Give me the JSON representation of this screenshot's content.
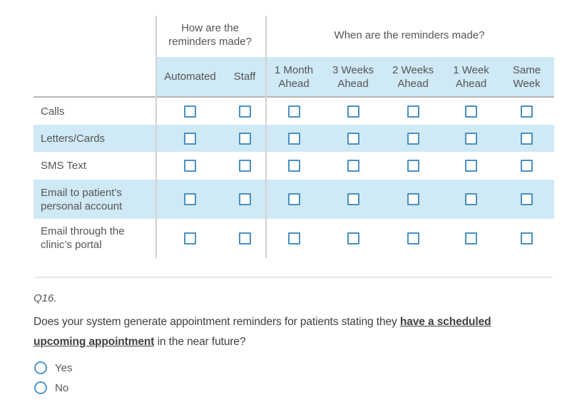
{
  "colors": {
    "row_highlight": "#cfe9f5",
    "checkbox_border": "#4a90c4",
    "radio_border": "#5095ce",
    "grid_line": "#d2d2d2",
    "header_rule": "#b7b7ba",
    "body_text": "#555555"
  },
  "matrix": {
    "group_headers": [
      "How are the reminders made?",
      "When are the reminders made?"
    ],
    "columns": [
      "Automated",
      "Staff",
      "1 Month Ahead",
      "3 Weeks Ahead",
      "2 Weeks Ahead",
      "1 Week Ahead",
      "Same Week"
    ],
    "rows": [
      "Calls",
      "Letters/Cards",
      "SMS Text",
      "Email to patient’s personal account",
      "Email through the clinic’s portal"
    ],
    "all_checkboxes_state": "unchecked"
  },
  "question": {
    "number": "Q16.",
    "text_before": "Does your system generate appointment reminders for patients stating they ",
    "emphasized": "have a scheduled upcoming appointment",
    "text_after": " in the near future?",
    "options": [
      "Yes",
      "No"
    ],
    "selected_option": "none"
  }
}
